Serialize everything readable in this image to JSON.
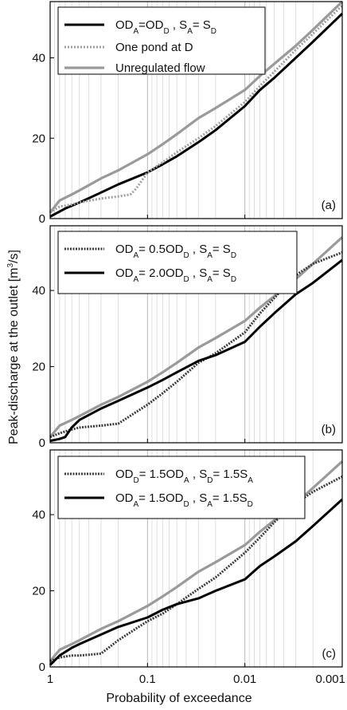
{
  "figure": {
    "xlabel": "Probability of exceedance",
    "ylabel": "Peak-discharge at the outlet [m",
    "ylabel_sup": "3",
    "ylabel_tail": "/s]"
  },
  "chart_data": [
    {
      "type": "line",
      "panel_label": "(a)",
      "x_scale": "log",
      "x_reversed": true,
      "xlim": [
        1,
        0.001
      ],
      "x_ticks": [
        "1",
        "0.1",
        "0.01",
        "0.001"
      ],
      "ylim": [
        0,
        54
      ],
      "y_ticks": [
        "0",
        "20",
        "40"
      ],
      "grid": "vertical log gridlines",
      "legend_position": "top-left",
      "colors": {
        "black": "#000000",
        "dotted_gray": "#a0a0a0",
        "gray": "#9a9a9a"
      },
      "series": [
        {
          "name_parts": [
            {
              "t": "OD"
            },
            {
              "t": "A",
              "sub": true
            },
            {
              "t": "=OD"
            },
            {
              "t": "D",
              "sub": true
            },
            {
              "t": " , S"
            },
            {
              "t": "A",
              "sub": true
            },
            {
              "t": "= S"
            },
            {
              "t": "D",
              "sub": true
            }
          ],
          "style": "black",
          "x": [
            1,
            0.7,
            0.5,
            0.3,
            0.2,
            0.1,
            0.07,
            0.05,
            0.03,
            0.02,
            0.01,
            0.007,
            0.005,
            0.003,
            0.002,
            0.001
          ],
          "y": [
            0.5,
            2.5,
            4,
            6.5,
            8.5,
            11.5,
            13.5,
            15.5,
            19,
            22,
            28,
            32,
            35,
            40,
            44,
            51
          ]
        },
        {
          "name_parts": [
            {
              "t": "One pond at D"
            }
          ],
          "style": "dotted_gray",
          "x": [
            1,
            0.8,
            0.6,
            0.5,
            0.3,
            0.2,
            0.15,
            0.13,
            0.1,
            0.07,
            0.05,
            0.03,
            0.02,
            0.01,
            0.007,
            0.005,
            0.003,
            0.002,
            0.001
          ],
          "y": [
            1.5,
            3,
            3.5,
            4,
            5,
            5.5,
            6,
            7.5,
            11.5,
            14,
            16.5,
            20,
            23,
            29,
            33,
            36.5,
            42,
            46,
            53
          ]
        },
        {
          "name_parts": [
            {
              "t": "Unregulated flow"
            }
          ],
          "style": "gray",
          "x": [
            1,
            0.8,
            0.6,
            0.5,
            0.3,
            0.2,
            0.1,
            0.07,
            0.05,
            0.03,
            0.02,
            0.01,
            0.007,
            0.005,
            0.003,
            0.002,
            0.001
          ],
          "y": [
            1.5,
            4.5,
            6,
            7,
            10,
            12,
            16,
            18.5,
            21,
            25,
            27.5,
            32,
            35.5,
            38.5,
            43,
            47,
            54
          ]
        }
      ]
    },
    {
      "type": "line",
      "panel_label": "(b)",
      "x_scale": "log",
      "x_reversed": true,
      "xlim": [
        1,
        0.001
      ],
      "x_ticks": [
        "1",
        "0.1",
        "0.01",
        "0.001"
      ],
      "ylim": [
        0,
        57
      ],
      "y_ticks": [
        "0",
        "20",
        "40"
      ],
      "grid": "vertical log gridlines",
      "legend_position": "top-left",
      "colors": {
        "black": "#000000",
        "dotted_dark": "#3c3c3c",
        "gray": "#9a9a9a"
      },
      "series": [
        {
          "name_parts": [
            {
              "t": "OD"
            },
            {
              "t": "A",
              "sub": true
            },
            {
              "t": "= 0.5OD"
            },
            {
              "t": "D",
              "sub": true
            },
            {
              "t": " , S"
            },
            {
              "t": "A",
              "sub": true
            },
            {
              "t": "= S"
            },
            {
              "t": "D",
              "sub": true
            }
          ],
          "style": "dotted_dark",
          "x": [
            1,
            0.8,
            0.6,
            0.5,
            0.3,
            0.2,
            0.1,
            0.07,
            0.05,
            0.03,
            0.02,
            0.01,
            0.007,
            0.005,
            0.003,
            0.002,
            0.001
          ],
          "y": [
            1.5,
            2.5,
            3.5,
            4,
            4.5,
            5,
            10,
            13,
            16,
            21,
            23.5,
            29,
            34,
            38,
            44,
            47,
            50
          ]
        },
        {
          "name_parts": [
            {
              "t": "OD"
            },
            {
              "t": "A",
              "sub": true
            },
            {
              "t": "= 2.0OD"
            },
            {
              "t": "D",
              "sub": true
            },
            {
              "t": " , S"
            },
            {
              "t": "A",
              "sub": true
            },
            {
              "t": "= S"
            },
            {
              "t": "D",
              "sub": true
            }
          ],
          "style": "black",
          "x": [
            1,
            0.8,
            0.7,
            0.6,
            0.5,
            0.3,
            0.2,
            0.1,
            0.07,
            0.05,
            0.03,
            0.02,
            0.01,
            0.007,
            0.005,
            0.003,
            0.002,
            0.001
          ],
          "y": [
            0.5,
            1,
            1.5,
            4,
            6,
            9,
            11,
            14.5,
            16.5,
            18.5,
            21.5,
            23,
            26.5,
            30.5,
            34,
            39,
            42,
            48
          ]
        },
        {
          "name_parts": [],
          "style": "gray",
          "x": [
            1,
            0.8,
            0.6,
            0.5,
            0.3,
            0.2,
            0.1,
            0.07,
            0.05,
            0.03,
            0.02,
            0.01,
            0.007,
            0.005,
            0.003,
            0.002,
            0.001
          ],
          "y": [
            1.5,
            4.5,
            6,
            7,
            10,
            12,
            16,
            18.5,
            21,
            25,
            27.5,
            32,
            35.5,
            38.5,
            43,
            47,
            54
          ]
        }
      ]
    },
    {
      "type": "line",
      "panel_label": "(c)",
      "x_scale": "log",
      "x_reversed": true,
      "xlim": [
        1,
        0.001
      ],
      "x_ticks": [
        "1",
        "0.1",
        "0.01",
        "0.001"
      ],
      "ylim": [
        0,
        57
      ],
      "y_ticks": [
        "0",
        "20",
        "40"
      ],
      "grid": "vertical log gridlines",
      "legend_position": "top-left",
      "colors": {
        "black": "#000000",
        "dotted_dark": "#3c3c3c",
        "gray": "#9a9a9a"
      },
      "series": [
        {
          "name_parts": [
            {
              "t": "OD"
            },
            {
              "t": "D",
              "sub": true
            },
            {
              "t": "= 1.5OD"
            },
            {
              "t": "A",
              "sub": true
            },
            {
              "t": " , S"
            },
            {
              "t": "D",
              "sub": true
            },
            {
              "t": "= 1.5S"
            },
            {
              "t": "A",
              "sub": true
            }
          ],
          "style": "dotted_dark",
          "x": [
            1,
            0.8,
            0.6,
            0.5,
            0.4,
            0.3,
            0.2,
            0.1,
            0.07,
            0.05,
            0.03,
            0.02,
            0.01,
            0.007,
            0.005,
            0.003,
            0.002,
            0.001
          ],
          "y": [
            1.5,
            2.5,
            3,
            3,
            3.2,
            3.5,
            7,
            12,
            14,
            16.5,
            20.5,
            23.5,
            30,
            34,
            38,
            43,
            46,
            50
          ]
        },
        {
          "name_parts": [
            {
              "t": "OD"
            },
            {
              "t": "A",
              "sub": true
            },
            {
              "t": "= 1.5OD"
            },
            {
              "t": "D",
              "sub": true
            },
            {
              "t": " , S"
            },
            {
              "t": "A",
              "sub": true
            },
            {
              "t": "= 1.5S"
            },
            {
              "t": "D",
              "sub": true
            }
          ],
          "style": "black",
          "x": [
            1,
            0.8,
            0.6,
            0.5,
            0.3,
            0.2,
            0.1,
            0.07,
            0.05,
            0.03,
            0.02,
            0.01,
            0.007,
            0.005,
            0.003,
            0.002,
            0.001
          ],
          "y": [
            0.5,
            3,
            5,
            6,
            8.5,
            10.5,
            13,
            15,
            16.5,
            18,
            20,
            23,
            26.5,
            29,
            33,
            37,
            44
          ]
        },
        {
          "name_parts": [],
          "style": "gray",
          "x": [
            1,
            0.8,
            0.6,
            0.5,
            0.3,
            0.2,
            0.1,
            0.07,
            0.05,
            0.03,
            0.02,
            0.01,
            0.007,
            0.005,
            0.003,
            0.002,
            0.001
          ],
          "y": [
            1.5,
            4.5,
            6,
            7,
            10,
            12,
            16,
            18.5,
            21,
            25,
            27.5,
            32,
            35.5,
            38.5,
            43,
            47,
            54
          ]
        }
      ]
    }
  ]
}
